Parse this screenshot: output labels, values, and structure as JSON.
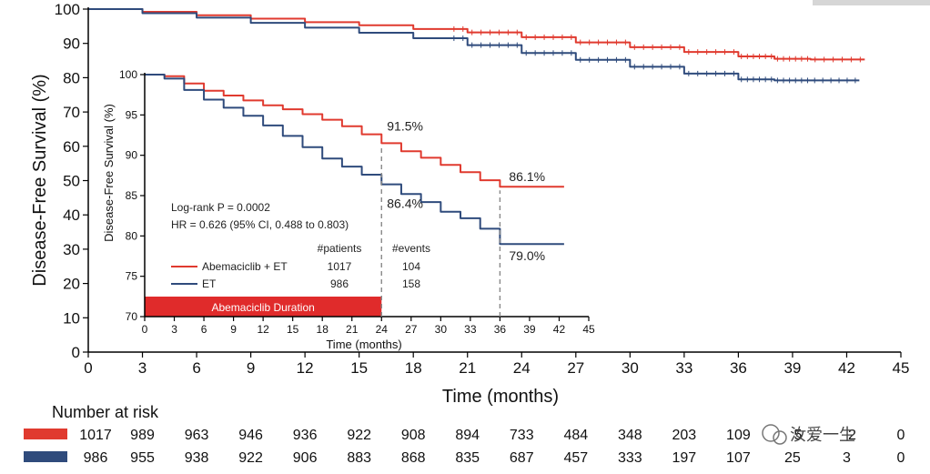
{
  "colors": {
    "abemaciclib": "#e03a2f",
    "et": "#2f4b7c",
    "bar": "#e02b2b",
    "dash": "#888888"
  },
  "chart_data": [
    {
      "type": "line",
      "title": "",
      "xlabel": "Time (months)",
      "ylabel": "Disease-Free Survival (%)",
      "xlim": [
        0,
        45
      ],
      "ylim": [
        0,
        100
      ],
      "xticks": [
        "0",
        "3",
        "6",
        "9",
        "12",
        "15",
        "18",
        "21",
        "24",
        "27",
        "30",
        "33",
        "36",
        "39",
        "42",
        "45"
      ],
      "yticks": [
        "0",
        "10",
        "20",
        "30",
        "40",
        "50",
        "60",
        "70",
        "80",
        "90",
        "100"
      ],
      "series": [
        {
          "name": "Abemaciclib + ET",
          "color": "#e03a2f",
          "x": [
            0,
            3,
            6,
            9,
            12,
            15,
            18,
            21,
            24,
            27,
            30,
            33,
            36,
            38,
            40,
            43
          ],
          "y": [
            100,
            99.2,
            98.2,
            97.2,
            96.2,
            95.3,
            94.2,
            93.2,
            91.8,
            90.3,
            88.9,
            87.5,
            86.2,
            85.5,
            85.3,
            85.3
          ]
        },
        {
          "name": "ET",
          "color": "#2f4b7c",
          "x": [
            0,
            3,
            6,
            9,
            12,
            15,
            18,
            21,
            24,
            27,
            30,
            33,
            36,
            38,
            40,
            42.7
          ],
          "y": [
            100,
            98.8,
            97.5,
            96,
            94.6,
            93.1,
            91.5,
            89.5,
            87.2,
            85.2,
            83.2,
            81.2,
            79.5,
            79.2,
            79.2,
            79.2
          ]
        }
      ],
      "risk_table": {
        "title": "Number at risk",
        "rows": [
          {
            "color": "#e03a2f",
            "values": [
              "1017",
              "989",
              "963",
              "946",
              "936",
              "922",
              "908",
              "894",
              "733",
              "484",
              "348",
              "203",
              "109",
              "5",
              "2",
              "0"
            ]
          },
          {
            "color": "#2f4b7c",
            "values": [
              "986",
              "955",
              "938",
              "922",
              "906",
              "883",
              "868",
              "835",
              "687",
              "457",
              "333",
              "197",
              "107",
              "25",
              "3",
              "0"
            ]
          }
        ]
      }
    },
    {
      "type": "line",
      "title": "",
      "xlabel": "Time (months)",
      "ylabel": "Disease-Free Survival (%)",
      "xlim": [
        0,
        45
      ],
      "ylim": [
        70,
        100
      ],
      "xticks": [
        "0",
        "3",
        "6",
        "9",
        "12",
        "15",
        "18",
        "21",
        "24",
        "27",
        "30",
        "33",
        "36",
        "39",
        "42",
        "45"
      ],
      "yticks": [
        "70",
        "75",
        "80",
        "85",
        "90",
        "95",
        "100"
      ],
      "series": [
        {
          "name": "Abemaciclib + ET",
          "color": "#e03a2f",
          "x": [
            0,
            2,
            4,
            6,
            8,
            10,
            12,
            14,
            16,
            18,
            20,
            22,
            24,
            26,
            28,
            30,
            32,
            34,
            36,
            38,
            40,
            42.5
          ],
          "y": [
            100,
            99.8,
            98.9,
            98,
            97.4,
            96.8,
            96.2,
            95.7,
            95.1,
            94.4,
            93.6,
            92.6,
            91.5,
            90.5,
            89.7,
            88.8,
            87.9,
            86.9,
            86.1,
            86.1,
            86.1,
            86.1
          ]
        },
        {
          "name": "ET",
          "color": "#2f4b7c",
          "x": [
            0,
            2,
            4,
            6,
            8,
            10,
            12,
            14,
            16,
            18,
            20,
            22,
            24,
            26,
            28,
            30,
            32,
            34,
            36,
            38,
            40,
            42.5
          ],
          "y": [
            100,
            99.5,
            98.1,
            96.9,
            95.9,
            94.9,
            93.7,
            92.4,
            91,
            89.6,
            88.6,
            87.6,
            86.4,
            85.2,
            84.2,
            83,
            82.2,
            80.9,
            79,
            79,
            79,
            79
          ]
        }
      ],
      "annotations": [
        {
          "text": "91.5%",
          "x": 24,
          "y": 91.5
        },
        {
          "text": "86.4%",
          "x": 24,
          "y": 86.4
        },
        {
          "text": "86.1%",
          "x": 36,
          "y": 86.1
        },
        {
          "text": "79.0%",
          "x": 36,
          "y": 79.0
        }
      ],
      "stats": {
        "logrank": "Log-rank P = 0.0002",
        "hr": "HR = 0.626 (95% CI, 0.488 to 0.803)"
      },
      "legend": {
        "headers": [
          "#patients",
          "#events"
        ],
        "rows": [
          {
            "label": "Abemaciclib + ET",
            "patients": "1017",
            "events": "104",
            "color": "#e03a2f"
          },
          {
            "label": "ET",
            "patients": "986",
            "events": "158",
            "color": "#2f4b7c"
          }
        ]
      },
      "duration_bar": {
        "label": "Abemaciclib Duration",
        "from": 0,
        "to": 24
      }
    }
  ],
  "watermark": "汝爱一生"
}
